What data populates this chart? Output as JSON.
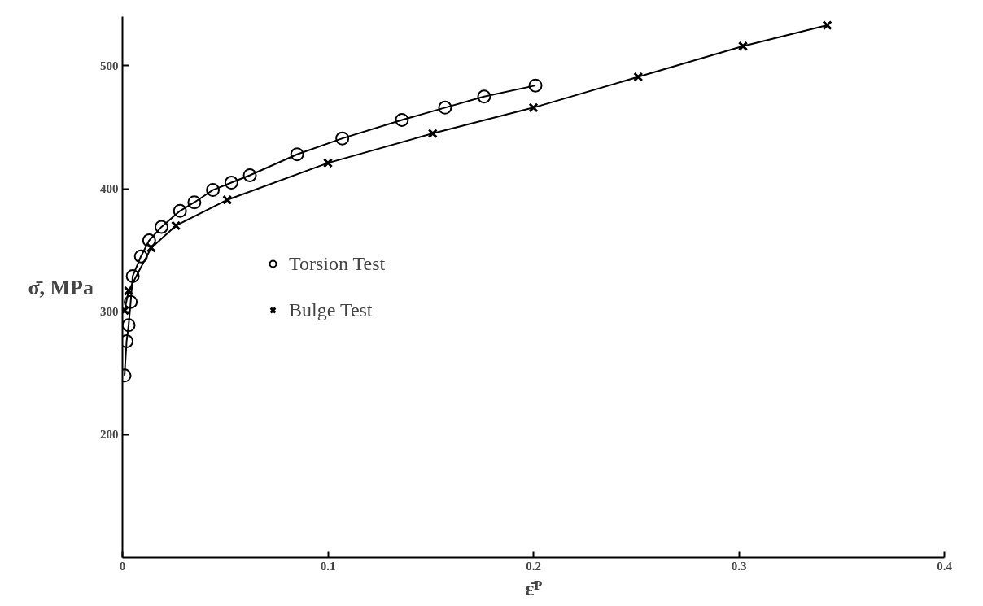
{
  "chart_data": {
    "type": "line",
    "xlabel": "ε̄ᴾ",
    "ylabel": "σ̄, MPa",
    "xlim": [
      0,
      0.4
    ],
    "ylim": [
      100,
      540
    ],
    "xticks": [
      0,
      0.1,
      0.2,
      0.3,
      0.4
    ],
    "yticks": [
      200,
      300,
      400,
      500
    ],
    "grid": false,
    "legend": "left",
    "line_style": "solid",
    "series": [
      {
        "name": "Torsion Test",
        "color": "#000000",
        "marker": "circle",
        "x": [
          0.001,
          0.002,
          0.003,
          0.004,
          0.005,
          0.009,
          0.013,
          0.019,
          0.028,
          0.035,
          0.044,
          0.053,
          0.062,
          0.085,
          0.107,
          0.136,
          0.157,
          0.176,
          0.201
        ],
        "values": [
          248,
          276,
          289,
          308,
          329,
          345,
          358,
          369,
          382,
          389,
          399,
          405,
          411,
          428,
          441,
          456,
          466,
          475,
          484
        ]
      },
      {
        "name": "Bulge Test",
        "color": "#000000",
        "marker": "cross",
        "x": [
          0.001,
          0.003,
          0.014,
          0.026,
          0.051,
          0.1,
          0.151,
          0.2,
          0.251,
          0.302,
          0.343
        ],
        "values": [
          301,
          317,
          352,
          370,
          391,
          421,
          445,
          466,
          491,
          516,
          533
        ]
      }
    ]
  }
}
